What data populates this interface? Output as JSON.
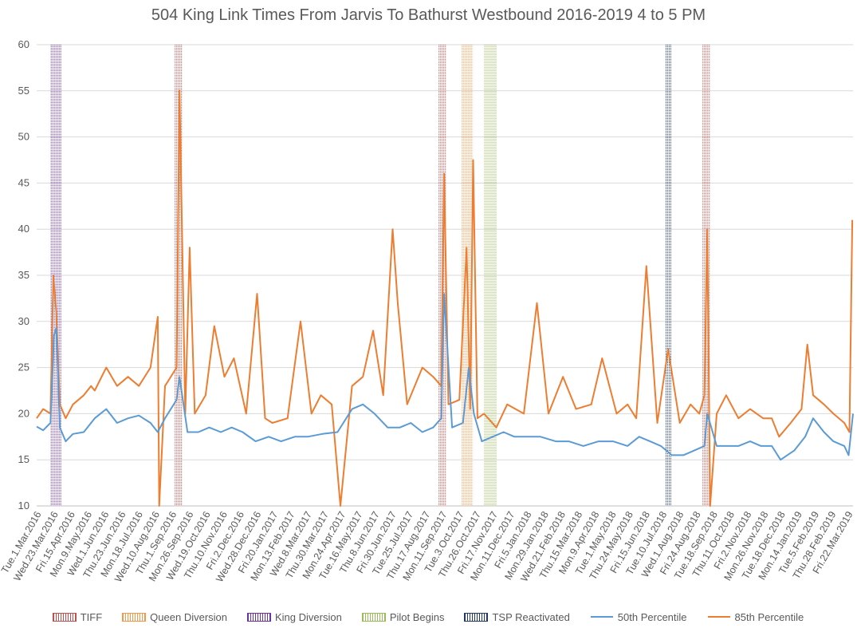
{
  "chart_data": {
    "type": "line",
    "title": "504 King Link Times From Jarvis To Bathurst Westbound 2016-2019 4 to 5 PM",
    "ylim": [
      10,
      60
    ],
    "yticks": [
      10,
      15,
      20,
      25,
      30,
      35,
      40,
      45,
      50,
      55,
      60
    ],
    "grid": true,
    "legend_position": "bottom",
    "x_range": [
      "2016-03-01",
      "2019-04-01"
    ],
    "xtick_labels": [
      "Tue.1.Mar.2016",
      "Wed.23.Mar.2016",
      "Fri.15.Apr.2016",
      "Mon.9.May.2016",
      "Wed.1.Jun.2016",
      "Thu.23.Jun.2016",
      "Mon.18.Jul.2016",
      "Wed.10.Aug.2016",
      "Thu.1.Sep.2016",
      "Mon.26.Sep.2016",
      "Wed.19.Oct.2016",
      "Thu.10.Nov.2016",
      "Fri.2.Dec.2016",
      "Wed.28.Dec.2016",
      "Fri.20.Jan.2017",
      "Mon.13.Feb.2017",
      "Wed.8.Mar.2017",
      "Thu.30.Mar.2017",
      "Mon.24.Apr.2017",
      "Tue.16.May.2017",
      "Thu.8.Jun.2017",
      "Fri.30.Jun.2017",
      "Tue.25.Jul.2017",
      "Thu.17.Aug.2017",
      "Mon.11.Sep.2017",
      "Tue.3.Oct.2017",
      "Thu.26.Oct.2017",
      "Fri.17.Nov.2017",
      "Mon.11.Dec.2017",
      "Fri.5.Jan.2018",
      "Mon.29.Jan.2018",
      "Wed.21.Feb.2018",
      "Thu.15.Mar.2018",
      "Mon.9.Apr.2018",
      "Tue.1.May.2018",
      "Thu.24.May.2018",
      "Fri.15.Jun.2018",
      "Tue.10.Jul.2018",
      "Wed.1.Aug.2018",
      "Fri.24.Aug.2018",
      "Tue.18.Sep.2018",
      "Thu.11.Oct.2018",
      "Fri.2.Nov.2018",
      "Mon.26.Nov.2018",
      "Tue.18.Dec.2018",
      "Mon.14.Jan.2019",
      "Tue.5.Feb.2019",
      "Thu.28.Feb.2019",
      "Fri.22.Mar.2019"
    ],
    "event_bands": [
      {
        "name": "King Diversion",
        "color": "#7030a0",
        "start": "2016-03-21",
        "end": "2016-04-04"
      },
      {
        "name": "TIFF",
        "color": "#c0504d",
        "start": "2016-09-08",
        "end": "2016-09-18"
      },
      {
        "name": "TIFF",
        "color": "#c0504d",
        "start": "2017-09-07",
        "end": "2017-09-17"
      },
      {
        "name": "Queen Diversion",
        "color": "#f79646",
        "start": "2017-10-09",
        "end": "2017-10-23"
      },
      {
        "name": "Pilot Begins",
        "color": "#9bbb59",
        "start": "2017-11-09",
        "end": "2017-11-26"
      },
      {
        "name": "TSP Reactivated",
        "color": "#1f3864",
        "start": "2018-07-17",
        "end": "2018-07-25"
      },
      {
        "name": "TIFF",
        "color": "#c0504d",
        "start": "2018-09-06",
        "end": "2018-09-16"
      }
    ],
    "series": [
      {
        "name": "50th Percentile",
        "color": "#5b9bd5",
        "x": [
          "2016-03-01",
          "2016-03-10",
          "2016-03-20",
          "2016-03-25",
          "2016-03-28",
          "2016-04-02",
          "2016-04-10",
          "2016-04-20",
          "2016-05-05",
          "2016-05-20",
          "2016-06-05",
          "2016-06-20",
          "2016-07-05",
          "2016-07-20",
          "2016-08-05",
          "2016-08-15",
          "2016-08-25",
          "2016-09-10",
          "2016-09-14",
          "2016-09-25",
          "2016-10-10",
          "2016-10-25",
          "2016-11-10",
          "2016-11-25",
          "2016-12-10",
          "2016-12-28",
          "2017-01-15",
          "2017-02-01",
          "2017-02-20",
          "2017-03-10",
          "2017-03-30",
          "2017-04-20",
          "2017-05-10",
          "2017-05-25",
          "2017-06-10",
          "2017-06-28",
          "2017-07-15",
          "2017-07-30",
          "2017-08-15",
          "2017-08-30",
          "2017-09-10",
          "2017-09-14",
          "2017-09-25",
          "2017-10-10",
          "2017-10-18",
          "2017-10-25",
          "2017-11-05",
          "2017-11-20",
          "2017-12-05",
          "2017-12-20",
          "2018-01-05",
          "2018-01-25",
          "2018-02-15",
          "2018-03-05",
          "2018-03-25",
          "2018-04-15",
          "2018-05-05",
          "2018-05-25",
          "2018-06-10",
          "2018-06-25",
          "2018-07-10",
          "2018-07-25",
          "2018-08-10",
          "2018-08-25",
          "2018-09-08",
          "2018-09-12",
          "2018-09-25",
          "2018-10-10",
          "2018-10-25",
          "2018-11-10",
          "2018-11-25",
          "2018-12-10",
          "2018-12-22",
          "2019-01-10",
          "2019-01-25",
          "2019-02-05",
          "2019-02-20",
          "2019-03-05",
          "2019-03-20",
          "2019-03-26",
          "2019-04-01"
        ],
        "y": [
          18.6,
          18.2,
          19.0,
          28.5,
          29.3,
          18.5,
          17.0,
          17.8,
          18.0,
          19.5,
          20.5,
          19.0,
          19.5,
          19.8,
          19.0,
          18.0,
          19.5,
          21.5,
          24.0,
          18.0,
          18.0,
          18.5,
          18.0,
          18.5,
          18.0,
          17.0,
          17.5,
          17.0,
          17.5,
          17.5,
          17.8,
          18.0,
          20.5,
          21.0,
          20.0,
          18.5,
          18.5,
          19.0,
          18.0,
          18.5,
          19.5,
          33.0,
          18.5,
          19.0,
          25.0,
          20.0,
          17.0,
          17.5,
          18.0,
          17.5,
          17.5,
          17.5,
          17.0,
          17.0,
          16.5,
          17.0,
          17.0,
          16.5,
          17.5,
          17.0,
          16.5,
          15.5,
          15.5,
          16.0,
          16.5,
          20.0,
          16.5,
          16.5,
          16.5,
          17.0,
          16.5,
          16.5,
          15.0,
          16.0,
          17.5,
          19.5,
          18.0,
          17.0,
          16.5,
          15.5,
          20.0
        ]
      },
      {
        "name": "85th Percentile",
        "color": "#ed7d31",
        "x": [
          "2016-03-01",
          "2016-03-10",
          "2016-03-20",
          "2016-03-24",
          "2016-03-28",
          "2016-04-02",
          "2016-04-10",
          "2016-04-20",
          "2016-05-05",
          "2016-05-15",
          "2016-05-20",
          "2016-06-05",
          "2016-06-20",
          "2016-07-05",
          "2016-07-20",
          "2016-08-05",
          "2016-08-15",
          "2016-08-17",
          "2016-08-25",
          "2016-09-10",
          "2016-09-14",
          "2016-09-22",
          "2016-09-28",
          "2016-10-05",
          "2016-10-20",
          "2016-11-01",
          "2016-11-15",
          "2016-11-28",
          "2016-12-15",
          "2016-12-30",
          "2017-01-10",
          "2017-01-20",
          "2017-02-10",
          "2017-02-28",
          "2017-03-15",
          "2017-03-28",
          "2017-04-12",
          "2017-04-24",
          "2017-05-10",
          "2017-05-25",
          "2017-06-08",
          "2017-06-22",
          "2017-07-05",
          "2017-07-12",
          "2017-07-25",
          "2017-08-15",
          "2017-08-30",
          "2017-09-10",
          "2017-09-14",
          "2017-09-20",
          "2017-10-05",
          "2017-10-15",
          "2017-10-20",
          "2017-10-24",
          "2017-10-30",
          "2017-11-08",
          "2017-11-25",
          "2017-12-10",
          "2018-01-02",
          "2018-01-20",
          "2018-02-05",
          "2018-02-25",
          "2018-03-15",
          "2018-04-05",
          "2018-04-20",
          "2018-05-10",
          "2018-05-25",
          "2018-06-06",
          "2018-06-20",
          "2018-07-05",
          "2018-07-20",
          "2018-08-05",
          "2018-08-20",
          "2018-09-01",
          "2018-09-08",
          "2018-09-12",
          "2018-09-16",
          "2018-09-25",
          "2018-10-08",
          "2018-10-25",
          "2018-11-10",
          "2018-11-28",
          "2018-12-10",
          "2018-12-20",
          "2019-01-05",
          "2019-01-20",
          "2019-01-28",
          "2019-02-05",
          "2019-02-20",
          "2019-03-05",
          "2019-03-20",
          "2019-03-27",
          "2019-03-31"
        ],
        "y": [
          19.5,
          20.5,
          20.0,
          35.0,
          31.0,
          21.0,
          19.5,
          21.0,
          22.0,
          23.0,
          22.5,
          25.0,
          23.0,
          24.0,
          23.0,
          25.0,
          30.5,
          10.0,
          23.0,
          25.0,
          55.0,
          20.0,
          38.0,
          20.0,
          22.0,
          29.5,
          24.0,
          26.0,
          20.0,
          33.0,
          19.5,
          19.0,
          19.5,
          30.0,
          20.0,
          22.0,
          21.0,
          10.0,
          23.0,
          24.0,
          29.0,
          22.0,
          40.0,
          32.0,
          21.0,
          25.0,
          24.0,
          23.0,
          46.0,
          21.0,
          21.5,
          38.0,
          20.5,
          47.5,
          19.5,
          20.0,
          18.5,
          21.0,
          20.0,
          32.0,
          20.0,
          24.0,
          20.5,
          21.0,
          26.0,
          20.0,
          21.0,
          19.5,
          36.0,
          19.0,
          27.0,
          19.0,
          21.0,
          20.0,
          22.0,
          40.0,
          10.0,
          20.0,
          22.0,
          19.5,
          20.5,
          19.5,
          19.5,
          17.5,
          19.0,
          20.5,
          27.5,
          22.0,
          21.0,
          20.0,
          19.0,
          18.0,
          41.0
        ]
      }
    ]
  },
  "legend": [
    {
      "label": "TIFF",
      "kind": "band",
      "color": "#c0504d"
    },
    {
      "label": "Queen Diversion",
      "kind": "band",
      "color": "#f79646"
    },
    {
      "label": "King Diversion",
      "kind": "band",
      "color": "#7030a0"
    },
    {
      "label": "Pilot Begins",
      "kind": "band",
      "color": "#9bbb59"
    },
    {
      "label": "TSP Reactivated",
      "kind": "band",
      "color": "#1f3864"
    },
    {
      "label": "50th Percentile",
      "kind": "line",
      "color": "#5b9bd5"
    },
    {
      "label": "85th Percentile",
      "kind": "line",
      "color": "#ed7d31"
    }
  ]
}
